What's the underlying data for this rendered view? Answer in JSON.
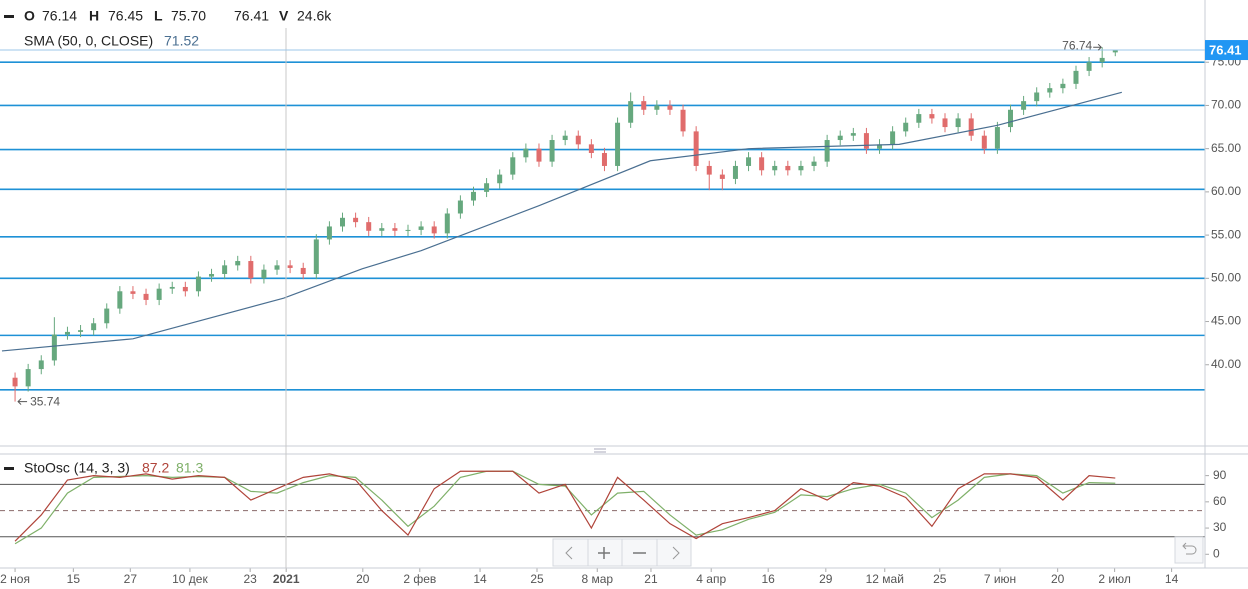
{
  "header": {
    "fields": [
      {
        "label": "O",
        "value": "76.14"
      },
      {
        "label": "H",
        "value": "76.45"
      },
      {
        "label": "L",
        "value": "75.70"
      }
    ],
    "close": "76.41",
    "volume": {
      "label": "V",
      "value": "24.6k"
    }
  },
  "chart_data": [
    {
      "type": "candlestick",
      "xlim": [
        -2.3,
        181.7
      ],
      "ylim": [
        30.6,
        82.2
      ],
      "yticks": [
        {
          "value": 75,
          "label": "75.00"
        },
        {
          "value": 70,
          "label": "70.00"
        },
        {
          "value": 65,
          "label": "65.00"
        },
        {
          "value": 60,
          "label": "60.00"
        },
        {
          "value": 55,
          "label": "55.00"
        },
        {
          "value": 50,
          "label": "50.00"
        },
        {
          "value": 45,
          "label": "45.00"
        },
        {
          "value": 40,
          "label": "40.00"
        }
      ],
      "xticks": [
        {
          "value": 0,
          "label": "2 ноя"
        },
        {
          "value": 8.9,
          "label": "15"
        },
        {
          "value": 17.6,
          "label": "27"
        },
        {
          "value": 26.7,
          "label": "10 дек"
        },
        {
          "value": 35.9,
          "label": "23"
        },
        {
          "value": 41.4,
          "label": "2021"
        },
        {
          "value": 53.1,
          "label": "20"
        },
        {
          "value": 61.8,
          "label": "2 фев"
        },
        {
          "value": 71,
          "label": "14"
        },
        {
          "value": 79.7,
          "label": "25"
        },
        {
          "value": 88.9,
          "label": "8 мар"
        },
        {
          "value": 97.1,
          "label": "21"
        },
        {
          "value": 106.3,
          "label": "4 апр"
        },
        {
          "value": 115,
          "label": "16"
        },
        {
          "value": 123.8,
          "label": "29"
        },
        {
          "value": 132.8,
          "label": "12 май"
        },
        {
          "value": 141.2,
          "label": "25"
        },
        {
          "value": 150.4,
          "label": "7 июн"
        },
        {
          "value": 159.2,
          "label": "20"
        },
        {
          "value": 167.9,
          "label": "2 июл"
        },
        {
          "value": 176.6,
          "label": "14"
        }
      ],
      "up_color": "#66a87e",
      "down_color": "#e06c6c",
      "level_color": "#1e91d6",
      "levels": [
        75,
        70,
        64.9,
        60.3,
        54.8,
        50,
        43.4,
        37.1
      ],
      "candles": {
        "x": [
          0,
          2,
          4,
          6,
          8,
          10,
          12,
          14,
          16,
          18,
          20,
          22,
          24,
          26,
          28,
          30,
          32,
          34,
          36,
          38,
          40,
          42,
          44,
          46,
          48,
          50,
          52,
          54,
          56,
          58,
          60,
          62,
          64,
          66,
          68,
          70,
          72,
          74,
          76,
          78,
          80,
          82,
          84,
          86,
          88,
          90,
          92,
          94,
          96,
          98,
          100,
          102,
          104,
          106,
          108,
          110,
          112,
          114,
          116,
          118,
          120,
          122,
          124,
          126,
          128,
          130,
          132,
          134,
          136,
          138,
          140,
          142,
          144,
          146,
          148,
          150,
          152,
          154,
          156,
          158,
          160,
          162,
          164,
          166,
          168
        ],
        "open": [
          38.5,
          37.5,
          39.5,
          40.5,
          43.5,
          43.8,
          44,
          44.8,
          46.5,
          48.5,
          48.2,
          47.5,
          48.8,
          49,
          48.5,
          50.2,
          50.5,
          51.5,
          52,
          50,
          51,
          51.5,
          51.2,
          50.5,
          54.5,
          56,
          57,
          56.5,
          55.5,
          55.8,
          55.5,
          55.6,
          56,
          55.2,
          57.5,
          59,
          60,
          61,
          62,
          64,
          65,
          63.5,
          66,
          66.5,
          65.5,
          64.5,
          63,
          68,
          70.5,
          69.5,
          70,
          69.5,
          67,
          63,
          62,
          61.5,
          63,
          64,
          62.5,
          63,
          62.5,
          63,
          63.5,
          66,
          66.5,
          66.8,
          65,
          65.5,
          67,
          68,
          69,
          68.5,
          67.5,
          68.5,
          66.5,
          65,
          67.5,
          69.5,
          70.5,
          71.5,
          72,
          72.5,
          74,
          75,
          76.14
        ],
        "high": [
          39.1,
          40.1,
          41.1,
          45.5,
          44.4,
          44.6,
          45.4,
          47.1,
          49.1,
          49.1,
          48.8,
          49.4,
          49.6,
          49.6,
          50.8,
          51.1,
          52.1,
          52.6,
          52.6,
          51.6,
          52.1,
          52.1,
          51.8,
          55.1,
          56.6,
          57.6,
          57.6,
          57.1,
          56.4,
          56.4,
          56.2,
          56.6,
          56.6,
          58.1,
          59.6,
          60.6,
          61.6,
          62.6,
          64.6,
          65.6,
          65.6,
          66.6,
          67.1,
          67.1,
          66.1,
          65.1,
          68.6,
          71.5,
          71.1,
          70.6,
          70.6,
          70.1,
          67.6,
          63.6,
          62.6,
          63.6,
          64.6,
          64.6,
          63.6,
          63.6,
          63.6,
          64.1,
          66.6,
          67.1,
          67.4,
          67.4,
          66.1,
          67.6,
          68.6,
          69.6,
          69.6,
          69.1,
          69.1,
          69.1,
          67.1,
          68.1,
          70.1,
          71.1,
          72.1,
          72.6,
          73.1,
          74.6,
          75.6,
          76.74,
          76.45
        ],
        "low": [
          35.74,
          36.9,
          38.9,
          39.9,
          42.9,
          43.2,
          43.4,
          44.2,
          45.9,
          47.6,
          46.9,
          46.9,
          48.2,
          47.9,
          47.9,
          49.6,
          49.9,
          50.9,
          49.4,
          49.4,
          50.4,
          50.6,
          49.9,
          49.9,
          53.9,
          55.4,
          55.9,
          54.9,
          54.9,
          54.9,
          54.9,
          55,
          54.6,
          54.6,
          56.9,
          58.4,
          59.4,
          60.4,
          61.4,
          63.4,
          62.9,
          62.9,
          65.4,
          64.9,
          63.9,
          62.4,
          62.4,
          67.4,
          68.9,
          68.9,
          68.9,
          66.4,
          62.4,
          60.2,
          60.2,
          60.9,
          62.4,
          61.9,
          61.9,
          61.9,
          61.9,
          62.4,
          62.9,
          65.4,
          65.9,
          64.4,
          64.4,
          64.9,
          66.4,
          67.4,
          67.9,
          66.9,
          66.9,
          65.9,
          64.4,
          64.4,
          66.9,
          68.9,
          69.9,
          70.9,
          71.4,
          71.9,
          73.4,
          74.4,
          75.7
        ],
        "close": [
          37.5,
          39.5,
          40.5,
          43.5,
          43.8,
          44,
          44.8,
          46.5,
          48.5,
          48.2,
          47.5,
          48.8,
          49,
          48.5,
          50.2,
          50.5,
          51.5,
          52,
          50,
          51,
          51.5,
          51.2,
          50.5,
          54.5,
          56,
          57,
          56.5,
          55.5,
          55.8,
          55.5,
          55.6,
          56,
          55.2,
          57.5,
          59,
          60,
          61,
          62,
          64,
          65,
          63.5,
          66,
          66.5,
          65.5,
          64.5,
          63,
          68,
          70.5,
          69.5,
          70,
          69.5,
          67,
          63,
          62,
          61.5,
          63,
          64,
          62.5,
          63,
          62.5,
          63,
          63.5,
          66,
          66.5,
          66.8,
          65,
          65.5,
          67,
          68,
          69,
          68.5,
          67.5,
          68.5,
          66.5,
          65,
          67.5,
          69.5,
          70.5,
          71.5,
          72,
          72.5,
          74,
          75,
          75.5,
          76.41
        ]
      },
      "sma": {
        "name": "SMA (50, 0, CLOSE)",
        "color": "#4a6f91",
        "x": [
          -2,
          18,
          41,
          53,
          62,
          80,
          97,
          112,
          135,
          150,
          169
        ],
        "values": [
          41.6,
          43,
          47.7,
          51.1,
          53.2,
          58.4,
          63.6,
          65,
          65.5,
          67.7,
          71.52
        ]
      }
    },
    {
      "type": "line",
      "title": "StoOsc (14, 3, 3)",
      "xlim": [
        -2.3,
        181.7
      ],
      "ylim": [
        -15.7,
        113.6
      ],
      "yticks": [
        90,
        60,
        30,
        0
      ],
      "levels": [
        80,
        20
      ],
      "dashed_level": 50,
      "x": [
        0,
        4,
        8,
        12,
        16,
        20,
        24,
        28,
        32,
        36,
        40,
        44,
        48,
        52,
        56,
        60,
        64,
        68,
        72,
        76,
        80,
        84,
        88,
        92,
        96,
        100,
        104,
        108,
        112,
        116,
        120,
        124,
        128,
        132,
        136,
        140,
        144,
        148,
        152,
        156,
        160,
        164,
        168
      ],
      "series": [
        {
          "color": "#b0443a",
          "values": [
            15,
            45,
            85,
            90,
            88,
            92,
            86,
            90,
            88,
            62,
            75,
            88,
            92,
            85,
            50,
            22,
            75,
            95,
            95,
            95,
            70,
            80,
            30,
            88,
            62,
            35,
            18,
            35,
            42,
            50,
            75,
            62,
            82,
            78,
            65,
            32,
            75,
            92,
            92,
            88,
            62,
            90,
            87.2
          ]
        },
        {
          "color": "#7fb069",
          "values": [
            12,
            30,
            70,
            88,
            89,
            90,
            88,
            89,
            88,
            72,
            70,
            82,
            90,
            88,
            62,
            32,
            55,
            88,
            95,
            95,
            80,
            78,
            45,
            70,
            72,
            45,
            22,
            28,
            40,
            48,
            68,
            66,
            75,
            80,
            70,
            42,
            62,
            88,
            92,
            90,
            70,
            82,
            81.3
          ]
        }
      ]
    }
  ]
}
